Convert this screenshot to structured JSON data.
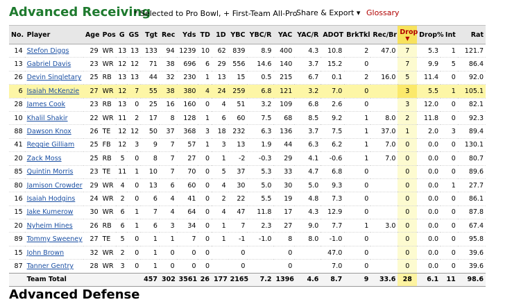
{
  "header": {
    "title": "Advanced Receiving",
    "note": "* Selected to Pro Bowl, + First-Team All-Pro",
    "share_export": "Share & Export ▾",
    "glossary": "Glossary"
  },
  "columns": [
    "No.",
    "Player",
    "Age",
    "Pos",
    "G",
    "GS",
    "Tgt",
    "Rec",
    "Yds",
    "TD",
    "1D",
    "YBC",
    "YBC/R",
    "YAC",
    "YAC/R",
    "ADOT",
    "BrkTkl",
    "Rec/Br",
    "Drop",
    "Drop%",
    "Int",
    "Rat"
  ],
  "sorted_column": "Drop",
  "rows": [
    [
      "14",
      "Stefon Diggs",
      "29",
      "WR",
      "13",
      "13",
      "133",
      "94",
      "1239",
      "10",
      "62",
      "839",
      "8.9",
      "400",
      "4.3",
      "10.8",
      "2",
      "47.0",
      "7",
      "5.3",
      "1",
      "121.7"
    ],
    [
      "13",
      "Gabriel Davis",
      "23",
      "WR",
      "12",
      "12",
      "71",
      "38",
      "696",
      "6",
      "29",
      "556",
      "14.6",
      "140",
      "3.7",
      "15.2",
      "0",
      "",
      "7",
      "9.9",
      "5",
      "86.4"
    ],
    [
      "26",
      "Devin Singletary",
      "25",
      "RB",
      "13",
      "13",
      "44",
      "32",
      "230",
      "1",
      "13",
      "15",
      "0.5",
      "215",
      "6.7",
      "0.1",
      "2",
      "16.0",
      "5",
      "11.4",
      "0",
      "92.0"
    ],
    [
      "6",
      "Isaiah McKenzie",
      "27",
      "WR",
      "12",
      "7",
      "55",
      "38",
      "380",
      "4",
      "24",
      "259",
      "6.8",
      "121",
      "3.2",
      "7.0",
      "0",
      "",
      "3",
      "5.5",
      "1",
      "105.1"
    ],
    [
      "28",
      "James Cook",
      "23",
      "RB",
      "13",
      "0",
      "25",
      "16",
      "160",
      "0",
      "4",
      "51",
      "3.2",
      "109",
      "6.8",
      "2.6",
      "0",
      "",
      "3",
      "12.0",
      "0",
      "82.1"
    ],
    [
      "10",
      "Khalil Shakir",
      "22",
      "WR",
      "11",
      "2",
      "17",
      "8",
      "128",
      "1",
      "6",
      "60",
      "7.5",
      "68",
      "8.5",
      "9.2",
      "1",
      "8.0",
      "2",
      "11.8",
      "0",
      "92.3"
    ],
    [
      "88",
      "Dawson Knox",
      "26",
      "TE",
      "12",
      "12",
      "50",
      "37",
      "368",
      "3",
      "18",
      "232",
      "6.3",
      "136",
      "3.7",
      "7.5",
      "1",
      "37.0",
      "1",
      "2.0",
      "3",
      "89.4"
    ],
    [
      "41",
      "Reggie Gilliam",
      "25",
      "FB",
      "12",
      "3",
      "9",
      "7",
      "57",
      "1",
      "3",
      "13",
      "1.9",
      "44",
      "6.3",
      "6.2",
      "1",
      "7.0",
      "0",
      "0.0",
      "0",
      "130.1"
    ],
    [
      "20",
      "Zack Moss",
      "25",
      "RB",
      "5",
      "0",
      "8",
      "7",
      "27",
      "0",
      "1",
      "-2",
      "-0.3",
      "29",
      "4.1",
      "-0.6",
      "1",
      "7.0",
      "0",
      "0.0",
      "0",
      "80.7"
    ],
    [
      "85",
      "Quintin Morris",
      "23",
      "TE",
      "11",
      "1",
      "10",
      "7",
      "70",
      "0",
      "5",
      "37",
      "5.3",
      "33",
      "4.7",
      "6.8",
      "0",
      "",
      "0",
      "0.0",
      "0",
      "89.6"
    ],
    [
      "80",
      "Jamison Crowder",
      "29",
      "WR",
      "4",
      "0",
      "13",
      "6",
      "60",
      "0",
      "4",
      "30",
      "5.0",
      "30",
      "5.0",
      "9.3",
      "0",
      "",
      "0",
      "0.0",
      "1",
      "27.7"
    ],
    [
      "16",
      "Isaiah Hodgins",
      "24",
      "WR",
      "2",
      "0",
      "6",
      "4",
      "41",
      "0",
      "2",
      "22",
      "5.5",
      "19",
      "4.8",
      "7.3",
      "0",
      "",
      "0",
      "0.0",
      "0",
      "86.1"
    ],
    [
      "15",
      "Jake Kumerow",
      "30",
      "WR",
      "6",
      "1",
      "7",
      "4",
      "64",
      "0",
      "4",
      "47",
      "11.8",
      "17",
      "4.3",
      "12.9",
      "0",
      "",
      "0",
      "0.0",
      "0",
      "87.8"
    ],
    [
      "20",
      "Nyheim Hines",
      "26",
      "RB",
      "6",
      "1",
      "6",
      "3",
      "34",
      "0",
      "1",
      "7",
      "2.3",
      "27",
      "9.0",
      "7.7",
      "1",
      "3.0",
      "0",
      "0.0",
      "0",
      "67.4"
    ],
    [
      "89",
      "Tommy Sweeney",
      "27",
      "TE",
      "5",
      "0",
      "1",
      "1",
      "7",
      "0",
      "1",
      "-1",
      "-1.0",
      "8",
      "8.0",
      "-1.0",
      "0",
      "",
      "0",
      "0.0",
      "0",
      "95.8"
    ],
    [
      "15",
      "John Brown",
      "32",
      "WR",
      "2",
      "0",
      "1",
      "0",
      "0",
      "0",
      "",
      "0",
      "",
      "0",
      "",
      "47.0",
      "0",
      "",
      "0",
      "0.0",
      "0",
      "39.6"
    ],
    [
      "87",
      "Tanner Gentry",
      "28",
      "WR",
      "3",
      "0",
      "1",
      "0",
      "0",
      "0",
      "",
      "0",
      "",
      "0",
      "",
      "7.0",
      "0",
      "",
      "0",
      "0.0",
      "0",
      "39.6"
    ]
  ],
  "highlight_row": 3,
  "total": [
    "",
    "Team Total",
    "",
    "",
    "",
    "",
    "457",
    "302",
    "3561",
    "26",
    "177",
    "2165",
    "7.2",
    "1396",
    "4.6",
    "8.7",
    "9",
    "33.6",
    "28",
    "6.1",
    "11",
    "98.6"
  ],
  "next_section": "Advanced Defense"
}
